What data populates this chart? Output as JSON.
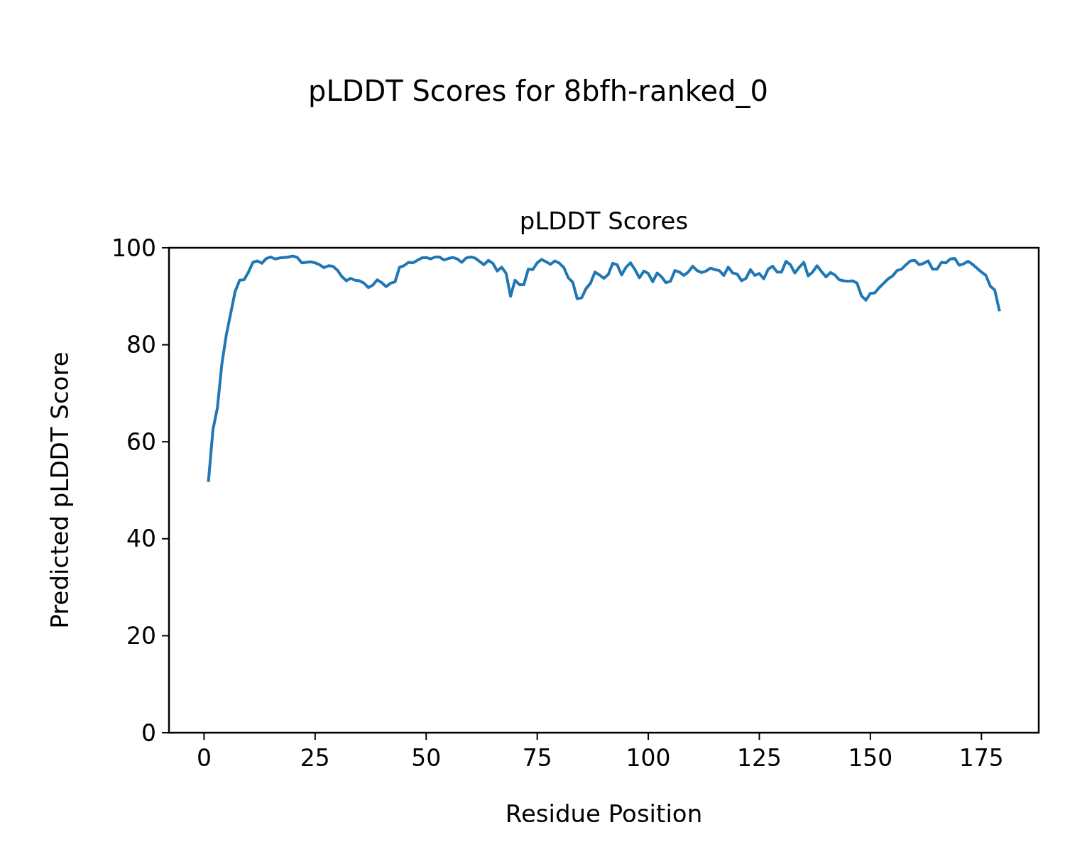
{
  "chart_data": {
    "type": "line",
    "title": "pLDDT Scores for 8bfh-ranked_0",
    "subtitle": "pLDDT Scores",
    "xlabel": "Residue Position",
    "ylabel": "Predicted pLDDT Score",
    "x": [
      1,
      2,
      3,
      4,
      5,
      6,
      7,
      8,
      9,
      10,
      11,
      12,
      13,
      14,
      15,
      16,
      17,
      18,
      19,
      20,
      21,
      22,
      23,
      24,
      25,
      26,
      27,
      28,
      29,
      30,
      31,
      32,
      33,
      34,
      35,
      36,
      37,
      38,
      39,
      40,
      41,
      42,
      43,
      44,
      45,
      46,
      47,
      48,
      49,
      50,
      51,
      52,
      53,
      54,
      55,
      56,
      57,
      58,
      59,
      60,
      61,
      62,
      63,
      64,
      65,
      66,
      67,
      68,
      69,
      70,
      71,
      72,
      73,
      74,
      75,
      76,
      77,
      78,
      79,
      80,
      81,
      82,
      83,
      84,
      85,
      86,
      87,
      88,
      89,
      90,
      91,
      92,
      93,
      94,
      95,
      96,
      97,
      98,
      99,
      100,
      101,
      102,
      103,
      104,
      105,
      106,
      107,
      108,
      109,
      110,
      111,
      112,
      113,
      114,
      115,
      116,
      117,
      118,
      119,
      120,
      121,
      122,
      123,
      124,
      125,
      126,
      127,
      128,
      129,
      130,
      131,
      132,
      133,
      134,
      135,
      136,
      137,
      138,
      139,
      140,
      141,
      142,
      143,
      144,
      145,
      146,
      147,
      148,
      149,
      150,
      151,
      152,
      153,
      154,
      155,
      156,
      157,
      158,
      159,
      160,
      161,
      162,
      163,
      164,
      165,
      166,
      167,
      168,
      169,
      170,
      171,
      172,
      173,
      174,
      175,
      176,
      177,
      178,
      179
    ],
    "series": [
      {
        "color": "#1f77b4",
        "values": [
          52,
          62.5,
          67,
          76,
          82,
          86.5,
          91,
          93.3,
          93.4,
          95,
          97,
          97.3,
          96.8,
          97.8,
          98.1,
          97.7,
          97.9,
          98,
          98.1,
          98.3,
          98,
          96.9,
          97,
          97.1,
          96.9,
          96.5,
          95.9,
          96.3,
          96.2,
          95.4,
          94.1,
          93.2,
          93.7,
          93.3,
          93.2,
          92.7,
          91.8,
          92.3,
          93.4,
          92.8,
          92,
          92.7,
          93,
          96,
          96.3,
          97,
          96.9,
          97.4,
          97.9,
          98,
          97.7,
          98.1,
          98.1,
          97.5,
          97.8,
          98,
          97.7,
          97,
          97.9,
          98.1,
          97.9,
          97.2,
          96.5,
          97.4,
          96.8,
          95.2,
          96,
          94.7,
          90,
          93.3,
          92.4,
          92.4,
          95.6,
          95.5,
          96.9,
          97.6,
          97.1,
          96.6,
          97.3,
          96.8,
          95.9,
          93.8,
          92.9,
          89.5,
          89.7,
          91.6,
          92.7,
          95,
          94.4,
          93.7,
          94.5,
          96.8,
          96.5,
          94.4,
          96,
          96.9,
          95.5,
          93.8,
          95.2,
          94.7,
          93,
          94.8,
          94,
          92.8,
          93.1,
          95.3,
          95,
          94.3,
          95,
          96.2,
          95.3,
          94.9,
          95.2,
          95.8,
          95.5,
          95.3,
          94.3,
          96,
          94.8,
          94.6,
          93.2,
          93.7,
          95.5,
          94.3,
          94.7,
          93.6,
          95.6,
          96.2,
          95,
          95,
          97.2,
          96.5,
          94.8,
          96,
          97,
          94.2,
          95,
          96.3,
          95.1,
          94,
          94.9,
          94.4,
          93.4,
          93.2,
          93.1,
          93.2,
          92.7,
          90.1,
          89.2,
          90.6,
          90.7,
          91.8,
          92.7,
          93.6,
          94.2,
          95.3,
          95.6,
          96.5,
          97.3,
          97.4,
          96.5,
          96.8,
          97.3,
          95.6,
          95.6,
          97,
          96.9,
          97.7,
          97.8,
          96.4,
          96.7,
          97.2,
          96.6,
          95.8,
          95,
          94.3,
          92.1,
          91.3,
          87.2
        ]
      }
    ],
    "xlim": [
      -7.9,
      187.9
    ],
    "xticks": [
      0,
      25,
      50,
      75,
      100,
      125,
      150,
      175
    ],
    "ylim": [
      0,
      100
    ],
    "yticks": [
      0,
      20,
      40,
      60,
      80,
      100
    ]
  }
}
